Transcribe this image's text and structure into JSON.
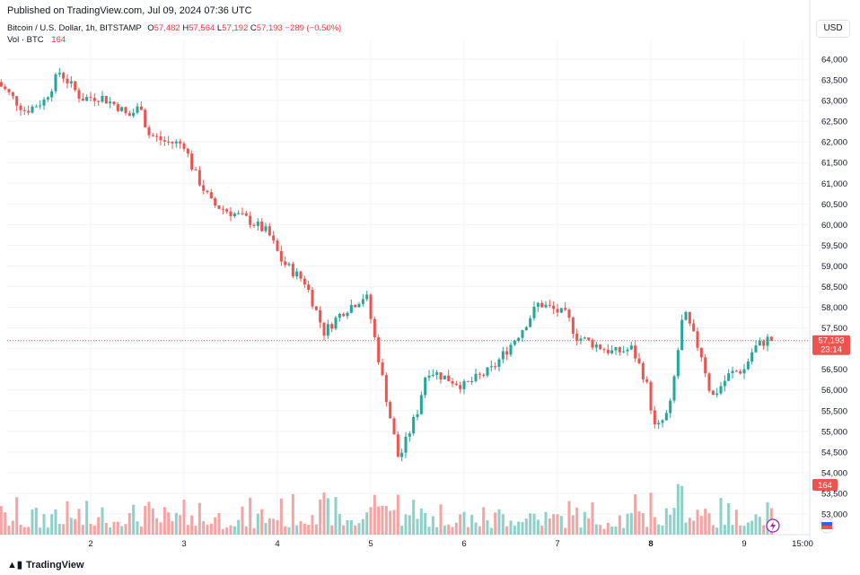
{
  "header": {
    "published": "Published on TradingView.com, Jul 09, 2024 07:36 UTC",
    "symbol": "Bitcoin / U.S. Dollar, 1h, BITSTAMP",
    "open_label": "O",
    "open_value": "57,482",
    "high_label": "H",
    "high_value": "57,564",
    "low_label": "L",
    "low_value": "57,192",
    "close_label": "C",
    "close_value": "57,193",
    "change": "−289 (−0.50%)",
    "vol_label": "Vol · BTC",
    "vol_value": "164"
  },
  "currency": "USD",
  "footer": {
    "logo_text": "TradingView",
    "logo_icon": "tradingview-logo-icon"
  },
  "colors": {
    "up": "#26a69a",
    "down": "#ef5350",
    "up_vol": "#8fd1c8",
    "down_vol": "#f5a4a4",
    "grid": "#f0f3fa",
    "axis_text": "#131722"
  },
  "icons": {
    "lightning": "lightning-icon",
    "flag": "flag-icon"
  },
  "chart_data": {
    "type": "candlestick",
    "ylim": [
      52600,
      64600
    ],
    "y_ticks": [
      53000,
      53500,
      54000,
      54500,
      55000,
      55500,
      56000,
      56500,
      57000,
      57500,
      58000,
      58500,
      59000,
      59500,
      60000,
      60500,
      61000,
      61500,
      62000,
      62500,
      63000,
      63500,
      64000
    ],
    "y_tick_labels": [
      "53,000",
      "53,500",
      "54,000",
      "54,500",
      "55,000",
      "55,500",
      "56,000",
      "56,500",
      "57,000",
      "57,500",
      "58,000",
      "58,500",
      "59,000",
      "59,500",
      "60,000",
      "60,500",
      "61,000",
      "61,500",
      "62,000",
      "62,500",
      "63,000",
      "63,500",
      "64,000"
    ],
    "x_ticks": [
      {
        "label": "2",
        "day": 2
      },
      {
        "label": "3",
        "day": 3
      },
      {
        "label": "4",
        "day": 4
      },
      {
        "label": "5",
        "day": 5
      },
      {
        "label": "6",
        "day": 6
      },
      {
        "label": "7",
        "day": 7
      },
      {
        "label": "8",
        "day": 8,
        "bold": true
      },
      {
        "label": "9",
        "day": 9
      },
      {
        "label": "15:00",
        "day": 9.625
      }
    ],
    "last_price": {
      "value": 57193,
      "label": "57,193",
      "countdown": "23:14"
    },
    "last_volume": {
      "value": 164,
      "label": "164"
    },
    "vol_max": 125,
    "waypoints": [
      [
        1.0,
        63450
      ],
      [
        1.3,
        62750
      ],
      [
        1.5,
        63000
      ],
      [
        1.67,
        63700
      ],
      [
        1.9,
        63050
      ],
      [
        2.1,
        63100
      ],
      [
        2.3,
        62850
      ],
      [
        2.4,
        62600
      ],
      [
        2.55,
        62900
      ],
      [
        2.6,
        62200
      ],
      [
        2.8,
        62000
      ],
      [
        3.0,
        61950
      ],
      [
        3.1,
        61300
      ],
      [
        3.2,
        60900
      ],
      [
        3.3,
        60500
      ],
      [
        3.5,
        60300
      ],
      [
        3.7,
        60100
      ],
      [
        3.9,
        59800
      ],
      [
        4.05,
        59100
      ],
      [
        4.3,
        58600
      ],
      [
        4.5,
        57400
      ],
      [
        4.7,
        57900
      ],
      [
        4.95,
        58300
      ],
      [
        5.15,
        56000
      ],
      [
        5.3,
        54300
      ],
      [
        5.5,
        55500
      ],
      [
        5.6,
        56500
      ],
      [
        6.0,
        56100
      ],
      [
        6.3,
        56500
      ],
      [
        6.6,
        57400
      ],
      [
        6.8,
        58100
      ],
      [
        7.1,
        57800
      ],
      [
        7.2,
        57300
      ],
      [
        7.4,
        57100
      ],
      [
        7.6,
        56900
      ],
      [
        7.8,
        57000
      ],
      [
        7.95,
        56200
      ],
      [
        8.05,
        55000
      ],
      [
        8.2,
        55500
      ],
      [
        8.35,
        57900
      ],
      [
        8.55,
        56800
      ],
      [
        8.65,
        55800
      ],
      [
        8.85,
        56400
      ],
      [
        9.0,
        56500
      ],
      [
        9.1,
        57000
      ],
      [
        9.3,
        57300
      ],
      [
        9.33,
        57193
      ]
    ]
  }
}
